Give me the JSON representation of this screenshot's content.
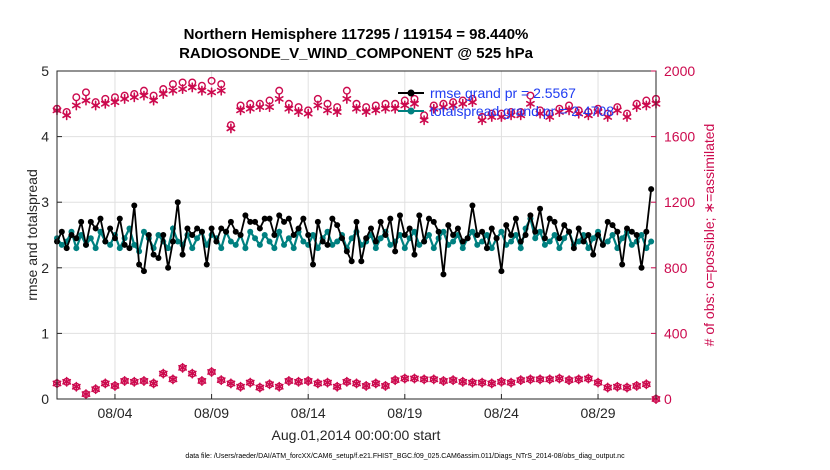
{
  "chart_data": {
    "type": "line",
    "title": "Northern Hemisphere 117295 / 119154 = 98.440%",
    "subtitle": "RADIOSONDE_V_WIND_COMPONENT @ 525 hPa",
    "xlabel": "Aug.01,2014 00:00:00 start",
    "ylabel_left": "rmse and totalspread",
    "ylabel_right": "# of obs: o=possible; ∗=assimilated",
    "x_tick_labels": [
      "08/04",
      "08/09",
      "08/14",
      "08/19",
      "08/24",
      "08/29"
    ],
    "x_tick_days": [
      4,
      9,
      14,
      19,
      24,
      29
    ],
    "xlim": [
      1,
      32
    ],
    "ylim_left": [
      0,
      5
    ],
    "ylim_right": [
      0,
      2000
    ],
    "y_left_ticks": [
      "0",
      "1",
      "2",
      "3",
      "4",
      "5"
    ],
    "y_right_ticks": [
      "0",
      "400",
      "800",
      "1200",
      "1600",
      "2000"
    ],
    "grid": true,
    "colors": {
      "rmse": "#000000",
      "spread": "#008080",
      "obs": "#cc0a4e",
      "legend_text": "#1f3cf2"
    },
    "legend": [
      {
        "key": "rmse",
        "label": "rmse grand pr = 2.5567"
      },
      {
        "key": "spread",
        "label": "totalspread grand pr = 2.4708"
      }
    ],
    "x": [
      1.0,
      1.25,
      1.5,
      1.75,
      2.0,
      2.25,
      2.5,
      2.75,
      3.0,
      3.25,
      3.5,
      3.75,
      4.0,
      4.25,
      4.5,
      4.75,
      5.0,
      5.25,
      5.5,
      5.75,
      6.0,
      6.25,
      6.5,
      6.75,
      7.0,
      7.25,
      7.5,
      7.75,
      8.0,
      8.25,
      8.5,
      8.75,
      9.0,
      9.25,
      9.5,
      9.75,
      10.0,
      10.25,
      10.5,
      10.75,
      11.0,
      11.25,
      11.5,
      11.75,
      12.0,
      12.25,
      12.5,
      12.75,
      13.0,
      13.25,
      13.5,
      13.75,
      14.0,
      14.25,
      14.5,
      14.75,
      15.0,
      15.25,
      15.5,
      15.75,
      16.0,
      16.25,
      16.5,
      16.75,
      17.0,
      17.25,
      17.5,
      17.75,
      18.0,
      18.25,
      18.5,
      18.75,
      19.0,
      19.25,
      19.5,
      19.75,
      20.0,
      20.25,
      20.5,
      20.75,
      21.0,
      21.25,
      21.5,
      21.75,
      22.0,
      22.25,
      22.5,
      22.75,
      23.0,
      23.25,
      23.5,
      23.75,
      24.0,
      24.25,
      24.5,
      24.75,
      25.0,
      25.25,
      25.5,
      25.75,
      26.0,
      26.25,
      26.5,
      26.75,
      27.0,
      27.25,
      27.5,
      27.75,
      28.0,
      28.25,
      28.5,
      28.75,
      29.0,
      29.25,
      29.5,
      29.75,
      30.0,
      30.25,
      30.5,
      30.75,
      31.0,
      31.25,
      31.5,
      31.75
    ],
    "rmse": [
      2.4,
      2.55,
      2.3,
      2.5,
      2.45,
      2.7,
      2.35,
      2.7,
      2.6,
      2.75,
      2.4,
      2.6,
      2.45,
      2.75,
      2.35,
      2.3,
      2.95,
      2.05,
      1.95,
      2.5,
      2.2,
      2.15,
      2.5,
      2.0,
      2.4,
      3.0,
      2.2,
      2.6,
      2.5,
      2.6,
      2.55,
      2.05,
      2.6,
      2.4,
      2.6,
      2.55,
      2.7,
      2.55,
      2.5,
      2.8,
      2.7,
      2.7,
      2.6,
      2.75,
      2.75,
      2.5,
      2.8,
      2.7,
      2.75,
      2.5,
      2.6,
      2.75,
      2.5,
      2.05,
      2.7,
      2.4,
      2.35,
      2.75,
      2.65,
      2.45,
      2.25,
      2.1,
      2.7,
      2.1,
      2.45,
      2.6,
      2.4,
      2.7,
      2.5,
      2.75,
      2.25,
      2.8,
      2.5,
      2.6,
      2.2,
      2.8,
      2.4,
      2.75,
      2.7,
      2.55,
      1.9,
      2.65,
      2.5,
      2.6,
      2.4,
      2.45,
      2.95,
      2.5,
      2.55,
      2.3,
      2.6,
      2.45,
      1.95,
      2.65,
      2.5,
      2.75,
      2.4,
      2.5,
      2.8,
      2.55,
      2.9,
      2.45,
      2.75,
      2.7,
      2.45,
      2.65,
      2.55,
      2.3,
      2.6,
      2.4,
      2.5,
      2.2,
      2.5,
      2.35,
      2.7,
      2.65,
      2.55,
      2.05,
      2.6,
      2.55,
      2.5,
      2.0,
      2.55,
      3.2
    ],
    "spread": [
      2.45,
      2.35,
      2.4,
      2.55,
      2.3,
      2.5,
      2.35,
      2.45,
      2.3,
      2.55,
      2.4,
      2.35,
      2.5,
      2.3,
      2.45,
      2.6,
      2.35,
      2.25,
      2.55,
      2.45,
      2.3,
      2.5,
      2.4,
      2.3,
      2.6,
      2.4,
      2.35,
      2.5,
      2.3,
      2.45,
      2.55,
      2.35,
      2.5,
      2.45,
      2.3,
      2.55,
      2.4,
      2.35,
      2.5,
      2.3,
      2.55,
      2.45,
      2.35,
      2.5,
      2.4,
      2.3,
      2.55,
      2.35,
      2.45,
      2.3,
      2.55,
      2.4,
      2.35,
      2.5,
      2.3,
      2.45,
      2.55,
      2.35,
      2.4,
      2.5,
      2.3,
      2.45,
      2.55,
      2.35,
      2.4,
      2.5,
      2.3,
      2.45,
      2.55,
      2.35,
      2.4,
      2.5,
      2.3,
      2.45,
      2.55,
      2.35,
      2.4,
      2.5,
      2.3,
      2.45,
      2.55,
      2.35,
      2.4,
      2.5,
      2.3,
      2.45,
      2.55,
      2.35,
      2.4,
      2.5,
      2.3,
      2.45,
      2.55,
      2.35,
      2.4,
      2.5,
      2.3,
      2.6,
      2.75,
      2.45,
      2.55,
      2.35,
      2.4,
      2.5,
      2.3,
      2.45,
      2.55,
      2.35,
      2.4,
      2.5,
      2.3,
      2.45,
      2.55,
      2.35,
      2.4,
      2.5,
      2.3,
      2.45,
      2.55,
      2.35,
      2.4,
      2.5,
      2.3,
      2.4
    ],
    "obs_days": [
      1,
      1.5,
      2,
      2.5,
      3,
      3.5,
      4,
      4.5,
      5,
      5.5,
      6,
      6.5,
      7,
      7.5,
      8,
      8.5,
      9,
      9.5,
      10,
      10.5,
      11,
      11.5,
      12,
      12.5,
      13,
      13.5,
      14,
      14.5,
      15,
      15.5,
      16,
      16.5,
      17,
      17.5,
      18,
      18.5,
      19,
      19.5,
      20,
      20.5,
      21,
      21.5,
      22,
      22.5,
      23,
      23.5,
      24,
      24.5,
      25,
      25.5,
      26,
      26.5,
      27,
      27.5,
      28,
      28.5,
      29,
      29.5,
      30,
      30.5,
      31,
      31.5,
      32
    ],
    "obs_possible": [
      1770,
      1750,
      1840,
      1870,
      1810,
      1830,
      1840,
      1850,
      1860,
      1880,
      1850,
      1890,
      1920,
      1930,
      1930,
      1910,
      1940,
      1920,
      1670,
      1790,
      1800,
      1800,
      1820,
      1880,
      1800,
      1780,
      1760,
      1830,
      1800,
      1780,
      1880,
      1800,
      1780,
      1790,
      1800,
      1800,
      1820,
      1830,
      1730,
      1790,
      1800,
      1810,
      1820,
      1830,
      1720,
      1740,
      1740,
      1750,
      1750,
      1850,
      1760,
      1740,
      1770,
      1790,
      1760,
      1750,
      1770,
      1740,
      1780,
      1740,
      1800,
      1820,
      1830
    ],
    "obs_assimilated": [
      1760,
      1730,
      1790,
      1820,
      1790,
      1800,
      1810,
      1830,
      1840,
      1850,
      1820,
      1860,
      1880,
      1890,
      1900,
      1880,
      1870,
      1880,
      1650,
      1760,
      1770,
      1780,
      1780,
      1830,
      1770,
      1750,
      1740,
      1790,
      1760,
      1750,
      1830,
      1770,
      1750,
      1760,
      1770,
      1770,
      1790,
      1800,
      1700,
      1770,
      1780,
      1790,
      1800,
      1810,
      1700,
      1720,
      1720,
      1730,
      1730,
      1800,
      1740,
      1720,
      1750,
      1760,
      1740,
      1730,
      1750,
      1720,
      1760,
      1720,
      1780,
      1790,
      1800
    ],
    "obs_bottom_days": [
      1,
      1.5,
      2,
      2.5,
      3,
      3.5,
      4,
      4.5,
      5,
      5.5,
      6,
      6.5,
      7,
      7.5,
      8,
      8.5,
      9,
      9.5,
      10,
      10.5,
      11,
      11.5,
      12,
      12.5,
      13,
      13.5,
      14,
      14.5,
      15,
      15.5,
      16,
      16.5,
      17,
      17.5,
      18,
      18.5,
      19,
      19.5,
      20,
      20.5,
      21,
      21.5,
      22,
      22.5,
      23,
      23.5,
      24,
      24.5,
      25,
      25.5,
      26,
      26.5,
      27,
      27.5,
      28,
      28.5,
      29,
      29.5,
      30,
      30.5,
      31,
      31.5,
      32
    ],
    "obs_bottom_counts": [
      95,
      105,
      75,
      30,
      60,
      95,
      80,
      110,
      105,
      110,
      95,
      155,
      120,
      190,
      155,
      110,
      165,
      115,
      95,
      75,
      100,
      70,
      90,
      75,
      110,
      105,
      110,
      95,
      100,
      75,
      105,
      95,
      80,
      95,
      80,
      115,
      125,
      125,
      120,
      120,
      110,
      115,
      105,
      100,
      100,
      95,
      105,
      100,
      115,
      120,
      120,
      120,
      125,
      115,
      120,
      125,
      100,
      70,
      75,
      70,
      80,
      90,
      0
    ]
  },
  "footer": "data file: /Users/raeder/DAI/ATM_forcXX/CAM6_setup/f.e21.FHIST_BGC.f09_025.CAM6assim.011/Diags_NTrS_2014-08/obs_diag_output.nc"
}
